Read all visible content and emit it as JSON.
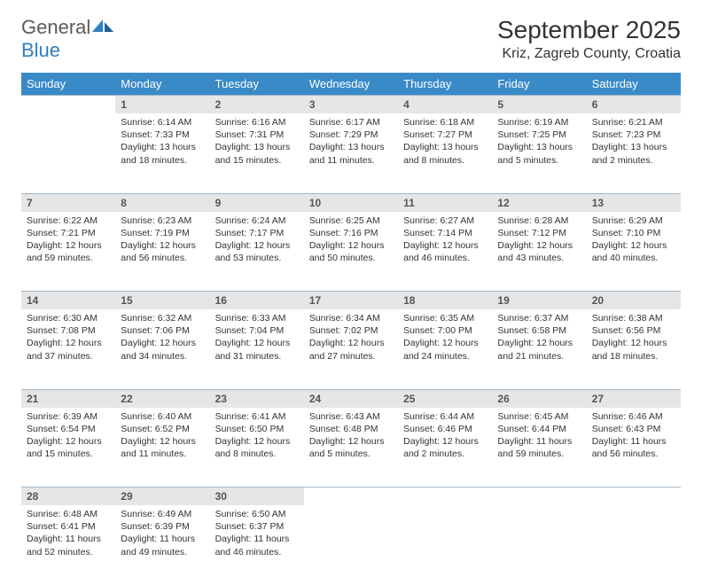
{
  "logo": {
    "general": "General",
    "blue": "Blue"
  },
  "title": "September 2025",
  "location": "Kriz, Zagreb County, Croatia",
  "weekdays": [
    "Sunday",
    "Monday",
    "Tuesday",
    "Wednesday",
    "Thursday",
    "Friday",
    "Saturday"
  ],
  "colors": {
    "header_bg": "#3a8ac8",
    "daynum_bg": "#e6e6e6",
    "rule": "#9fb7c9",
    "logo_blue": "#2f7fc1"
  },
  "weeks": [
    [
      null,
      {
        "n": "1",
        "sr": "6:14 AM",
        "ss": "7:33 PM",
        "dl": "13 hours and 18 minutes."
      },
      {
        "n": "2",
        "sr": "6:16 AM",
        "ss": "7:31 PM",
        "dl": "13 hours and 15 minutes."
      },
      {
        "n": "3",
        "sr": "6:17 AM",
        "ss": "7:29 PM",
        "dl": "13 hours and 11 minutes."
      },
      {
        "n": "4",
        "sr": "6:18 AM",
        "ss": "7:27 PM",
        "dl": "13 hours and 8 minutes."
      },
      {
        "n": "5",
        "sr": "6:19 AM",
        "ss": "7:25 PM",
        "dl": "13 hours and 5 minutes."
      },
      {
        "n": "6",
        "sr": "6:21 AM",
        "ss": "7:23 PM",
        "dl": "13 hours and 2 minutes."
      }
    ],
    [
      {
        "n": "7",
        "sr": "6:22 AM",
        "ss": "7:21 PM",
        "dl": "12 hours and 59 minutes."
      },
      {
        "n": "8",
        "sr": "6:23 AM",
        "ss": "7:19 PM",
        "dl": "12 hours and 56 minutes."
      },
      {
        "n": "9",
        "sr": "6:24 AM",
        "ss": "7:17 PM",
        "dl": "12 hours and 53 minutes."
      },
      {
        "n": "10",
        "sr": "6:25 AM",
        "ss": "7:16 PM",
        "dl": "12 hours and 50 minutes."
      },
      {
        "n": "11",
        "sr": "6:27 AM",
        "ss": "7:14 PM",
        "dl": "12 hours and 46 minutes."
      },
      {
        "n": "12",
        "sr": "6:28 AM",
        "ss": "7:12 PM",
        "dl": "12 hours and 43 minutes."
      },
      {
        "n": "13",
        "sr": "6:29 AM",
        "ss": "7:10 PM",
        "dl": "12 hours and 40 minutes."
      }
    ],
    [
      {
        "n": "14",
        "sr": "6:30 AM",
        "ss": "7:08 PM",
        "dl": "12 hours and 37 minutes."
      },
      {
        "n": "15",
        "sr": "6:32 AM",
        "ss": "7:06 PM",
        "dl": "12 hours and 34 minutes."
      },
      {
        "n": "16",
        "sr": "6:33 AM",
        "ss": "7:04 PM",
        "dl": "12 hours and 31 minutes."
      },
      {
        "n": "17",
        "sr": "6:34 AM",
        "ss": "7:02 PM",
        "dl": "12 hours and 27 minutes."
      },
      {
        "n": "18",
        "sr": "6:35 AM",
        "ss": "7:00 PM",
        "dl": "12 hours and 24 minutes."
      },
      {
        "n": "19",
        "sr": "6:37 AM",
        "ss": "6:58 PM",
        "dl": "12 hours and 21 minutes."
      },
      {
        "n": "20",
        "sr": "6:38 AM",
        "ss": "6:56 PM",
        "dl": "12 hours and 18 minutes."
      }
    ],
    [
      {
        "n": "21",
        "sr": "6:39 AM",
        "ss": "6:54 PM",
        "dl": "12 hours and 15 minutes."
      },
      {
        "n": "22",
        "sr": "6:40 AM",
        "ss": "6:52 PM",
        "dl": "12 hours and 11 minutes."
      },
      {
        "n": "23",
        "sr": "6:41 AM",
        "ss": "6:50 PM",
        "dl": "12 hours and 8 minutes."
      },
      {
        "n": "24",
        "sr": "6:43 AM",
        "ss": "6:48 PM",
        "dl": "12 hours and 5 minutes."
      },
      {
        "n": "25",
        "sr": "6:44 AM",
        "ss": "6:46 PM",
        "dl": "12 hours and 2 minutes."
      },
      {
        "n": "26",
        "sr": "6:45 AM",
        "ss": "6:44 PM",
        "dl": "11 hours and 59 minutes."
      },
      {
        "n": "27",
        "sr": "6:46 AM",
        "ss": "6:43 PM",
        "dl": "11 hours and 56 minutes."
      }
    ],
    [
      {
        "n": "28",
        "sr": "6:48 AM",
        "ss": "6:41 PM",
        "dl": "11 hours and 52 minutes."
      },
      {
        "n": "29",
        "sr": "6:49 AM",
        "ss": "6:39 PM",
        "dl": "11 hours and 49 minutes."
      },
      {
        "n": "30",
        "sr": "6:50 AM",
        "ss": "6:37 PM",
        "dl": "11 hours and 46 minutes."
      },
      null,
      null,
      null,
      null
    ]
  ],
  "labels": {
    "sunrise": "Sunrise:",
    "sunset": "Sunset:",
    "daylight": "Daylight:"
  }
}
